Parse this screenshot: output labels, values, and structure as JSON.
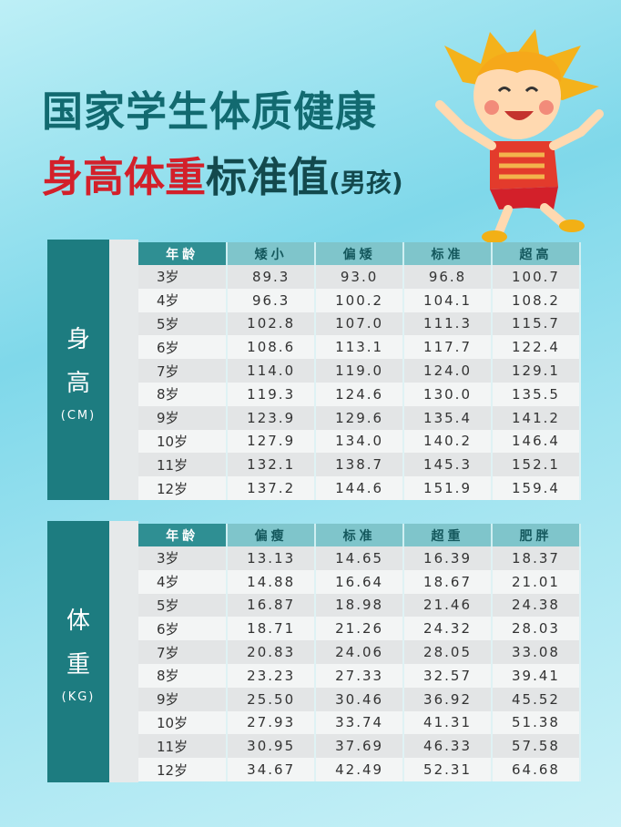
{
  "title": {
    "line1": "国家学生体质健康",
    "line2_red": "身高体重",
    "line2_dark": "标准值",
    "line2_sub": "(男孩)"
  },
  "height_table": {
    "side_char1": "身",
    "side_char2": "高",
    "unit": "(CM)",
    "headers": [
      "年龄",
      "矮小",
      "偏矮",
      "标准",
      "超高"
    ],
    "rows": [
      [
        "3岁",
        "89.3",
        "93.0",
        "96.8",
        "100.7"
      ],
      [
        "4岁",
        "96.3",
        "100.2",
        "104.1",
        "108.2"
      ],
      [
        "5岁",
        "102.8",
        "107.0",
        "111.3",
        "115.7"
      ],
      [
        "6岁",
        "108.6",
        "113.1",
        "117.7",
        "122.4"
      ],
      [
        "7岁",
        "114.0",
        "119.0",
        "124.0",
        "129.1"
      ],
      [
        "8岁",
        "119.3",
        "124.6",
        "130.0",
        "135.5"
      ],
      [
        "9岁",
        "123.9",
        "129.6",
        "135.4",
        "141.2"
      ],
      [
        "10岁",
        "127.9",
        "134.0",
        "140.2",
        "146.4"
      ],
      [
        "11岁",
        "132.1",
        "138.7",
        "145.3",
        "152.1"
      ],
      [
        "12岁",
        "137.2",
        "144.6",
        "151.9",
        "159.4"
      ]
    ]
  },
  "weight_table": {
    "side_char1": "体",
    "side_char2": "重",
    "unit": "(KG)",
    "headers": [
      "年龄",
      "偏瘦",
      "标准",
      "超重",
      "肥胖"
    ],
    "rows": [
      [
        "3岁",
        "13.13",
        "14.65",
        "16.39",
        "18.37"
      ],
      [
        "4岁",
        "14.88",
        "16.64",
        "18.67",
        "21.01"
      ],
      [
        "5岁",
        "16.87",
        "18.98",
        "21.46",
        "24.38"
      ],
      [
        "6岁",
        "18.71",
        "21.26",
        "24.32",
        "28.03"
      ],
      [
        "7岁",
        "20.83",
        "24.06",
        "28.05",
        "33.08"
      ],
      [
        "8岁",
        "23.23",
        "27.33",
        "32.57",
        "39.41"
      ],
      [
        "9岁",
        "25.50",
        "30.46",
        "36.92",
        "45.52"
      ],
      [
        "10岁",
        "27.93",
        "33.74",
        "41.31",
        "51.38"
      ],
      [
        "11岁",
        "30.95",
        "37.69",
        "46.33",
        "57.58"
      ],
      [
        "12岁",
        "34.67",
        "42.49",
        "52.31",
        "64.68"
      ]
    ]
  },
  "colors": {
    "teal": "#1d7c80",
    "red": "#d3202a",
    "header": "#7fc5cb"
  }
}
